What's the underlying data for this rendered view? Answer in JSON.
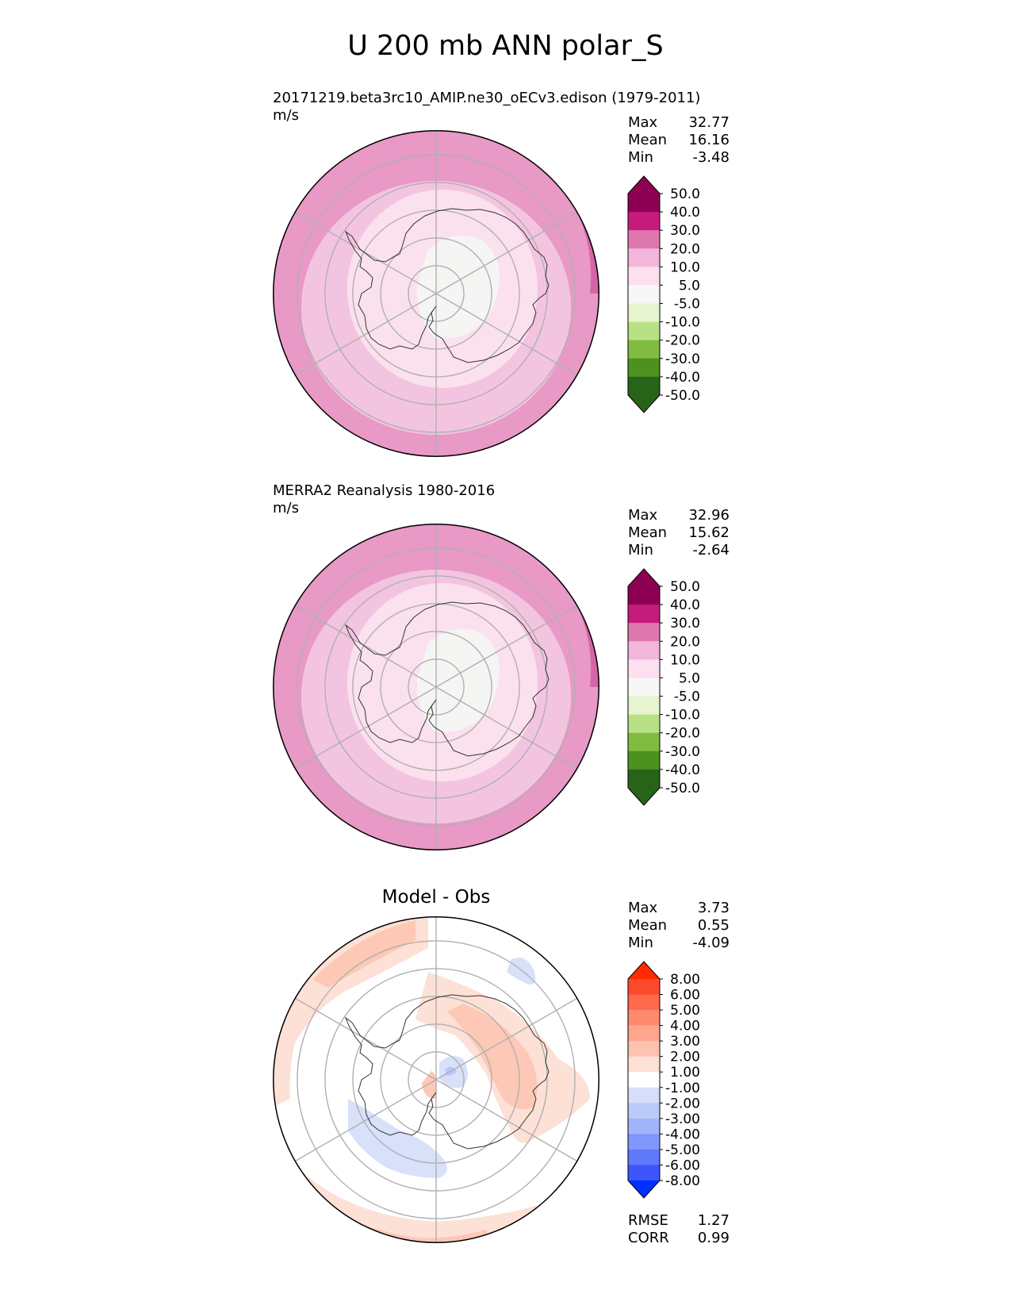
{
  "title": "U 200 mb ANN polar_S",
  "chart_data": [
    {
      "type": "heatmap",
      "projection": "south-polar-stereographic",
      "title": "20171219.beta3rc10_AMIP.ne30_oECv3.edison (1979-2011)",
      "units": "m/s",
      "stats": {
        "max": "32.77",
        "mean": "16.16",
        "min": "-3.48"
      },
      "colorbar": {
        "levels": [
          "50.0",
          "40.0",
          "30.0",
          "20.0",
          "10.0",
          "5.0",
          "-5.0",
          "-10.0",
          "-20.0",
          "-30.0",
          "-40.0",
          "-50.0"
        ],
        "colors": [
          "#8e0152",
          "#c51b7d",
          "#de77ae",
          "#f1b6da",
          "#fde0ef",
          "#f7f7f7",
          "#e6f5d0",
          "#b8e186",
          "#7fbc41",
          "#4d9221",
          "#276419"
        ],
        "extend_max": "#8e0152",
        "extend_min": "#276419"
      },
      "field_colors": {
        "outer": "#e899c6",
        "ring2": "#f3c4e0",
        "ring3": "#fbe1ee",
        "core": "#f5f5f3",
        "rim": "#d664a6"
      }
    },
    {
      "type": "heatmap",
      "projection": "south-polar-stereographic",
      "title": "MERRA2 Reanalysis 1980-2016",
      "units": "m/s",
      "stats": {
        "max": "32.96",
        "mean": "15.62",
        "min": "-2.64"
      },
      "colorbar": {
        "levels": [
          "50.0",
          "40.0",
          "30.0",
          "20.0",
          "10.0",
          "5.0",
          "-5.0",
          "-10.0",
          "-20.0",
          "-30.0",
          "-40.0",
          "-50.0"
        ],
        "colors": [
          "#8e0152",
          "#c51b7d",
          "#de77ae",
          "#f1b6da",
          "#fde0ef",
          "#f7f7f7",
          "#e6f5d0",
          "#b8e186",
          "#7fbc41",
          "#4d9221",
          "#276419"
        ],
        "extend_max": "#8e0152",
        "extend_min": "#276419"
      },
      "field_colors": {
        "outer": "#e899c6",
        "ring2": "#f3c4e0",
        "ring3": "#fbe1ee",
        "core": "#f5f5f3",
        "rim": "#d664a6"
      }
    },
    {
      "type": "heatmap",
      "projection": "south-polar-stereographic",
      "title": "Model - Obs",
      "stats": {
        "max": "3.73",
        "mean": "0.55",
        "min": "-4.09"
      },
      "metrics": {
        "rmse": "1.27",
        "corr": "0.99"
      },
      "colorbar": {
        "levels": [
          "8.00",
          "6.00",
          "5.00",
          "4.00",
          "3.00",
          "2.00",
          "1.00",
          "-1.00",
          "-2.00",
          "-3.00",
          "-4.00",
          "-5.00",
          "-6.00",
          "-8.00"
        ],
        "colors": [
          "#fe4a2c",
          "#fe6a4b",
          "#fe8a6e",
          "#fea68d",
          "#fdc3b0",
          "#fde0d6",
          "#ffffff",
          "#d7def9",
          "#bccaf9",
          "#a1b4fb",
          "#8197fb",
          "#6079fc",
          "#3c55fd"
        ],
        "extend_max": "#ff2a00",
        "extend_min": "#0030ff"
      },
      "field_colors": {
        "pos1": "#fde0d6",
        "pos2": "#fdc8b6",
        "neg1": "#d8e0fa",
        "neg2": "#b9c6fa",
        "bg": "#ffffff"
      }
    }
  ]
}
